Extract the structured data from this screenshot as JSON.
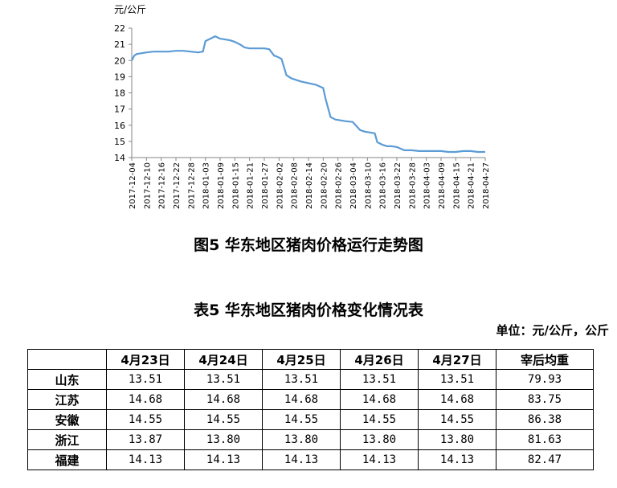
{
  "chart_data": {
    "type": "line",
    "ylabel": "元/公斤",
    "ylim": [
      14,
      22
    ],
    "yticks": [
      14,
      15,
      16,
      17,
      18,
      19,
      20,
      21,
      22
    ],
    "xticks": [
      "2017-12-04",
      "2017-12-10",
      "2017-12-16",
      "2017-12-22",
      "2017-12-28",
      "2018-01-03",
      "2018-01-09",
      "2018-01-15",
      "2018-01-21",
      "2018-01-27",
      "2018-02-02",
      "2018-02-08",
      "2018-02-14",
      "2018-02-20",
      "2018-02-26",
      "2018-03-04",
      "2018-03-10",
      "2018-03-16",
      "2018-03-22",
      "2018-03-28",
      "2018-04-03",
      "2018-04-09",
      "2018-04-15",
      "2018-04-21",
      "2018-04-27"
    ],
    "grid": false,
    "color": "#5B9BD5",
    "series": [
      {
        "x": [
          "2017-12-04",
          "2017-12-05",
          "2017-12-06",
          "2017-12-08",
          "2017-12-10",
          "2017-12-13",
          "2017-12-16",
          "2017-12-19",
          "2017-12-22",
          "2017-12-25",
          "2017-12-28",
          "2017-12-31",
          "2018-01-02",
          "2018-01-03",
          "2018-01-05",
          "2018-01-07",
          "2018-01-09",
          "2018-01-11",
          "2018-01-13",
          "2018-01-15",
          "2018-01-17",
          "2018-01-19",
          "2018-01-21",
          "2018-01-23",
          "2018-01-25",
          "2018-01-27",
          "2018-01-29",
          "2018-01-31",
          "2018-02-01",
          "2018-02-03",
          "2018-02-05",
          "2018-02-07",
          "2018-02-09",
          "2018-02-11",
          "2018-02-14",
          "2018-02-17",
          "2018-02-20",
          "2018-02-21",
          "2018-02-23",
          "2018-02-25",
          "2018-02-27",
          "2018-03-01",
          "2018-03-04",
          "2018-03-07",
          "2018-03-09",
          "2018-03-11",
          "2018-03-13",
          "2018-03-14",
          "2018-03-16",
          "2018-03-18",
          "2018-03-20",
          "2018-03-22",
          "2018-03-25",
          "2018-03-28",
          "2018-03-31",
          "2018-04-03",
          "2018-04-06",
          "2018-04-09",
          "2018-04-12",
          "2018-04-15",
          "2018-04-18",
          "2018-04-21",
          "2018-04-24",
          "2018-04-27"
        ],
        "values": [
          20.0,
          20.3,
          20.4,
          20.45,
          20.5,
          20.55,
          20.55,
          20.55,
          20.6,
          20.6,
          20.55,
          20.5,
          20.55,
          21.2,
          21.35,
          21.5,
          21.35,
          21.3,
          21.25,
          21.15,
          21.0,
          20.8,
          20.75,
          20.75,
          20.75,
          20.75,
          20.7,
          20.3,
          20.25,
          20.1,
          19.1,
          18.9,
          18.8,
          18.7,
          18.6,
          18.5,
          18.3,
          17.6,
          16.5,
          16.35,
          16.3,
          16.25,
          16.2,
          15.7,
          15.6,
          15.55,
          15.5,
          14.95,
          14.8,
          14.7,
          14.7,
          14.65,
          14.45,
          14.45,
          14.4,
          14.4,
          14.4,
          14.4,
          14.35,
          14.35,
          14.4,
          14.4,
          14.35,
          14.35
        ]
      }
    ]
  },
  "figure_caption": "图5 华东地区猪肉价格运行走势图",
  "table_caption": "表5 华东地区猪肉价格变化情况表",
  "unit_note": "单位：元/公斤，公斤",
  "table": {
    "headers": [
      "",
      "4月23日",
      "4月24日",
      "4月25日",
      "4月26日",
      "4月27日",
      "宰后均重"
    ],
    "rows": [
      {
        "province": "山东",
        "values": [
          "13.51",
          "13.51",
          "13.51",
          "13.51",
          "13.51",
          "79.93"
        ]
      },
      {
        "province": "江苏",
        "values": [
          "14.68",
          "14.68",
          "14.68",
          "14.68",
          "14.68",
          "83.75"
        ]
      },
      {
        "province": "安徽",
        "values": [
          "14.55",
          "14.55",
          "14.55",
          "14.55",
          "14.55",
          "86.38"
        ]
      },
      {
        "province": "浙江",
        "values": [
          "13.87",
          "13.80",
          "13.80",
          "13.80",
          "13.80",
          "81.63"
        ]
      },
      {
        "province": "福建",
        "values": [
          "14.13",
          "14.13",
          "14.13",
          "14.13",
          "14.13",
          "82.47"
        ]
      }
    ]
  }
}
